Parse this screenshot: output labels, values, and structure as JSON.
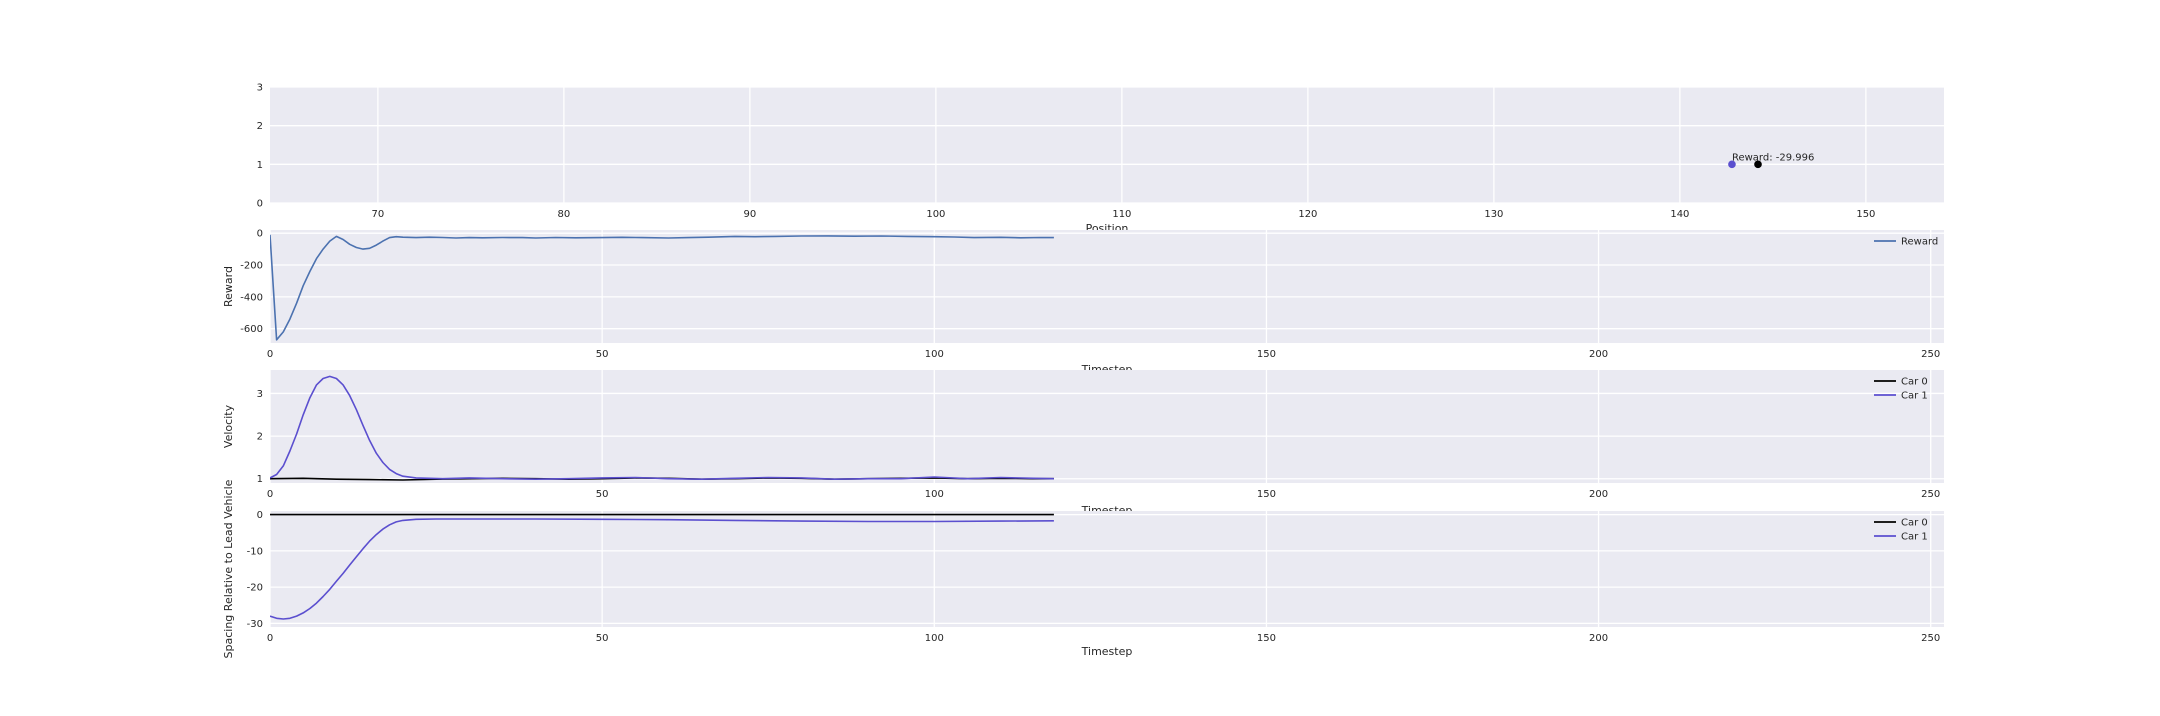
{
  "colors": {
    "car0": "#000000",
    "car1": "#5b4fcf",
    "reward": "#4c72b0",
    "background": "#eaeaf2"
  },
  "chart_data": [
    {
      "type": "scatter",
      "xlabel": "Position",
      "ylabel": "",
      "xlim": [
        64.2,
        154.2
      ],
      "ylim": [
        0,
        3
      ],
      "xticks": [
        70,
        80,
        90,
        100,
        110,
        120,
        130,
        140,
        150
      ],
      "yticks": [
        0,
        1,
        2,
        3
      ],
      "points": [
        {
          "name": "Car 1",
          "x": 142.8,
          "y": 1,
          "color": "#5b4fcf"
        },
        {
          "name": "Car 0",
          "x": 144.2,
          "y": 1,
          "color": "#000000"
        }
      ],
      "annotation": {
        "text": "Reward: -29.996",
        "x": 142.8,
        "y": 1.05
      },
      "grid": true
    },
    {
      "type": "line",
      "xlabel": "Timestep",
      "ylabel": "Reward",
      "xlim": [
        0,
        252
      ],
      "ylim": [
        -690,
        20
      ],
      "xticks": [
        0,
        50,
        100,
        150,
        200,
        250
      ],
      "yticks": [
        0,
        -200,
        -400,
        -600
      ],
      "legend": "top-right",
      "series": [
        {
          "name": "Reward",
          "color": "#4c72b0",
          "x": [
            0,
            1,
            2,
            3,
            4,
            5,
            6,
            7,
            8,
            9,
            10,
            11,
            12,
            13,
            14,
            15,
            16,
            17,
            18,
            19,
            20,
            22,
            24,
            26,
            28,
            30,
            32,
            35,
            38,
            40,
            43,
            46,
            50,
            53,
            56,
            60,
            63,
            66,
            70,
            73,
            76,
            80,
            84,
            88,
            92,
            96,
            100,
            103,
            106,
            110,
            113,
            116,
            118
          ],
          "values": [
            -10,
            -670,
            -620,
            -540,
            -440,
            -330,
            -240,
            -160,
            -100,
            -50,
            -20,
            -40,
            -70,
            -90,
            -100,
            -95,
            -75,
            -50,
            -28,
            -22,
            -25,
            -28,
            -25,
            -27,
            -30,
            -28,
            -29,
            -27,
            -28,
            -30,
            -27,
            -29,
            -28,
            -26,
            -28,
            -30,
            -28,
            -25,
            -20,
            -22,
            -20,
            -18,
            -17,
            -19,
            -18,
            -20,
            -22,
            -24,
            -28,
            -26,
            -29,
            -27,
            -28
          ]
        }
      ],
      "grid": true
    },
    {
      "type": "line",
      "xlabel": "Timestep",
      "ylabel": "Velocity",
      "xlim": [
        0,
        252
      ],
      "ylim": [
        0.9,
        3.55
      ],
      "xticks": [
        0,
        50,
        100,
        150,
        200,
        250
      ],
      "yticks": [
        1,
        2,
        3
      ],
      "legend": "top-right",
      "series": [
        {
          "name": "Car 0",
          "color": "#000000",
          "x": [
            0,
            5,
            10,
            15,
            20,
            25,
            30,
            35,
            40,
            45,
            50,
            55,
            60,
            65,
            70,
            75,
            80,
            85,
            90,
            95,
            100,
            105,
            110,
            115,
            118
          ],
          "values": [
            1.0,
            1.01,
            0.99,
            0.98,
            0.97,
            0.99,
            1.0,
            1.01,
            1.0,
            0.99,
            1.0,
            1.02,
            1.01,
            0.99,
            1.0,
            1.02,
            1.01,
            0.99,
            1.0,
            1.01,
            1.02,
            1.0,
            1.01,
            1.0,
            1.0
          ]
        },
        {
          "name": "Car 1",
          "color": "#5b4fcf",
          "x": [
            0,
            1,
            2,
            3,
            4,
            5,
            6,
            7,
            8,
            9,
            10,
            11,
            12,
            13,
            14,
            15,
            16,
            17,
            18,
            19,
            20,
            22,
            24,
            26,
            30,
            35,
            40,
            45,
            50,
            55,
            60,
            65,
            70,
            75,
            80,
            85,
            90,
            95,
            100,
            105,
            110,
            115,
            118
          ],
          "values": [
            1.02,
            1.1,
            1.3,
            1.65,
            2.05,
            2.5,
            2.9,
            3.2,
            3.35,
            3.4,
            3.35,
            3.2,
            2.95,
            2.62,
            2.25,
            1.9,
            1.6,
            1.38,
            1.22,
            1.12,
            1.06,
            1.02,
            1.01,
            1.0,
            1.02,
            1.0,
            0.99,
            1.0,
            1.02,
            1.03,
            1.0,
            0.99,
            1.01,
            1.03,
            1.02,
            0.99,
            1.0,
            1.0,
            1.04,
            1.0,
            1.03,
            1.01,
            1.0
          ]
        }
      ],
      "grid": true
    },
    {
      "type": "line",
      "xlabel": "Timestep",
      "ylabel": "Spacing Relative to Lead Vehicle",
      "xlim": [
        0,
        252
      ],
      "ylim": [
        -31,
        1
      ],
      "xticks": [
        0,
        50,
        100,
        150,
        200,
        250
      ],
      "yticks": [
        0,
        -10,
        -20,
        -30
      ],
      "legend": "top-right",
      "series": [
        {
          "name": "Car 0",
          "color": "#000000",
          "x": [
            0,
            118
          ],
          "values": [
            0,
            0
          ]
        },
        {
          "name": "Car 1",
          "color": "#5b4fcf",
          "x": [
            0,
            1,
            2,
            3,
            4,
            5,
            6,
            7,
            8,
            9,
            10,
            11,
            12,
            13,
            14,
            15,
            16,
            17,
            18,
            19,
            20,
            22,
            25,
            30,
            40,
            50,
            60,
            70,
            80,
            90,
            100,
            110,
            118
          ],
          "values": [
            -28,
            -28.6,
            -28.8,
            -28.6,
            -28,
            -27.1,
            -25.9,
            -24.4,
            -22.6,
            -20.6,
            -18.4,
            -16.2,
            -13.9,
            -11.6,
            -9.4,
            -7.3,
            -5.5,
            -4.0,
            -2.8,
            -2.0,
            -1.6,
            -1.3,
            -1.2,
            -1.2,
            -1.2,
            -1.3,
            -1.4,
            -1.6,
            -1.8,
            -1.9,
            -1.9,
            -1.8,
            -1.7
          ]
        }
      ],
      "grid": true
    }
  ]
}
